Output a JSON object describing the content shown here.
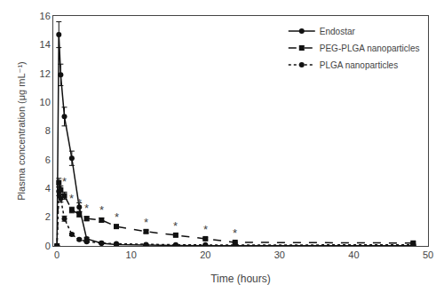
{
  "chart_data": {
    "type": "line",
    "xlabel": "Time (hours)",
    "ylabel": "Plasma concentration (μg mL⁻¹)",
    "xlim": [
      -0.5,
      50
    ],
    "ylim": [
      0,
      16
    ],
    "xticks": [
      0,
      10,
      20,
      30,
      40,
      50
    ],
    "yticks": [
      0,
      2,
      4,
      6,
      8,
      10,
      12,
      14,
      16
    ],
    "grid": false,
    "legend": "upper right",
    "x": [
      0,
      0.25,
      0.5,
      1,
      2,
      3,
      4,
      6,
      8,
      12,
      16,
      20,
      24,
      48
    ],
    "series": [
      {
        "name": "Endostar",
        "color": "#111111",
        "marker": "circle",
        "line_style": "solid",
        "values": [
          0,
          14.7,
          11.9,
          9.0,
          6.1,
          2.7,
          0.5,
          0.18,
          0.1,
          0.05,
          0.03,
          0.02,
          0.02,
          0.02
        ],
        "err": [
          0,
          0.9,
          0.75,
          0.65,
          0.5,
          0.3,
          0.1,
          0.05,
          0.03,
          0.02,
          0.01,
          0.01,
          0.01,
          0.01
        ]
      },
      {
        "name": "PEG-PLGA nanoparticles",
        "color": "#111111",
        "marker": "square",
        "line_style": "dash",
        "values": [
          0,
          4.4,
          3.9,
          3.5,
          2.5,
          2.2,
          1.9,
          1.8,
          1.35,
          1.0,
          0.75,
          0.5,
          0.25,
          0.2
        ],
        "err": [
          0,
          0.3,
          0.28,
          0.25,
          0.2,
          0.18,
          0.15,
          0.14,
          0.12,
          0.1,
          0.08,
          0.07,
          0.05,
          0.06
        ]
      },
      {
        "name": "PLGA nanoparticles",
        "color": "#111111",
        "marker": "circle",
        "line_style": "dot",
        "values": [
          0,
          3.8,
          3.3,
          1.9,
          0.8,
          0.45,
          0.3,
          0.2,
          0.15,
          0.1,
          0.08,
          0.07,
          0.06,
          0.08
        ],
        "err": [
          0,
          0.3,
          0.25,
          0.18,
          0.09,
          0.07,
          0.05,
          0.04,
          0.03,
          0.03,
          0.02,
          0.02,
          0.02,
          0.03
        ]
      }
    ],
    "annotations": [
      {
        "x": 1,
        "y": 3.9,
        "text": "*"
      },
      {
        "x": 2,
        "y": 2.7,
        "text": "*"
      },
      {
        "x": 3,
        "y": 2.4,
        "text": "*"
      },
      {
        "x": 4,
        "y": 2.05,
        "text": "*"
      },
      {
        "x": 6,
        "y": 1.9,
        "text": "*"
      },
      {
        "x": 8,
        "y": 1.4,
        "text": "*"
      },
      {
        "x": 12,
        "y": 1.07,
        "text": "*"
      },
      {
        "x": 16,
        "y": 0.83,
        "text": "*"
      },
      {
        "x": 20,
        "y": 0.55,
        "text": "*"
      },
      {
        "x": 24,
        "y": 0.3,
        "text": "*"
      }
    ]
  }
}
